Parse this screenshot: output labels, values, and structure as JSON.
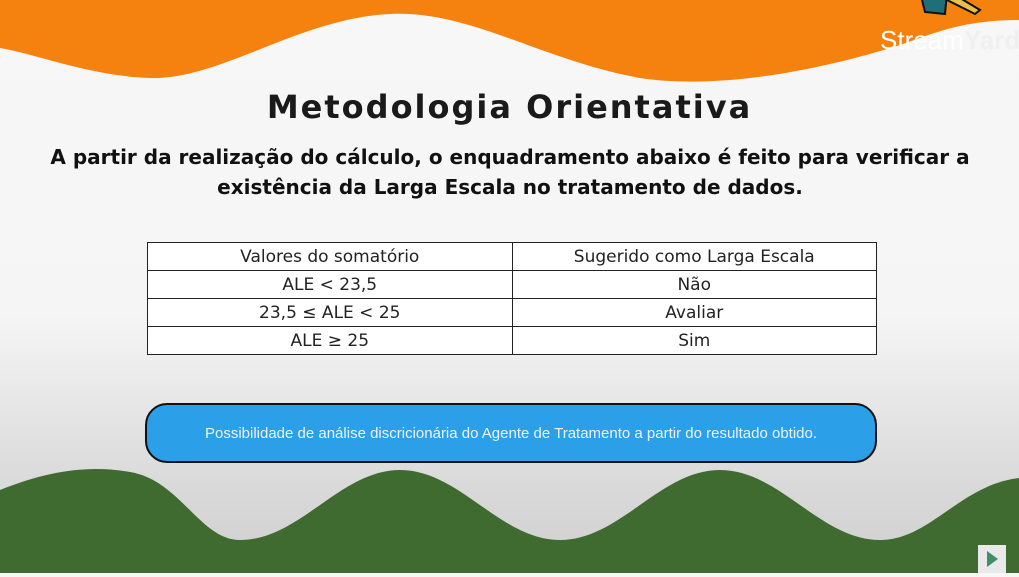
{
  "slide": {
    "title": "Metodologia Orientativa",
    "subtitle": "A partir da realização do cálculo, o enquadramento abaixo é feito para verificar a existência da Larga Escala no tratamento de dados.",
    "table": {
      "headers": [
        "Valores do somatório",
        "Sugerido como Larga Escala"
      ],
      "rows": [
        [
          "ALE < 23,5",
          "Não"
        ],
        [
          "23,5 ≤ ALE < 25",
          "Avaliar"
        ],
        [
          "ALE ≥ 25",
          "Sim"
        ]
      ]
    },
    "note": "Possibilidade de análise discricionária do Agente de Tratamento a partir do resultado obtido."
  },
  "branding": {
    "logo_a": "Stream",
    "logo_b": "Yard"
  },
  "colors": {
    "orange": "#f5820f",
    "green": "#3f6b30",
    "note_blue": "#2b9fe8"
  }
}
